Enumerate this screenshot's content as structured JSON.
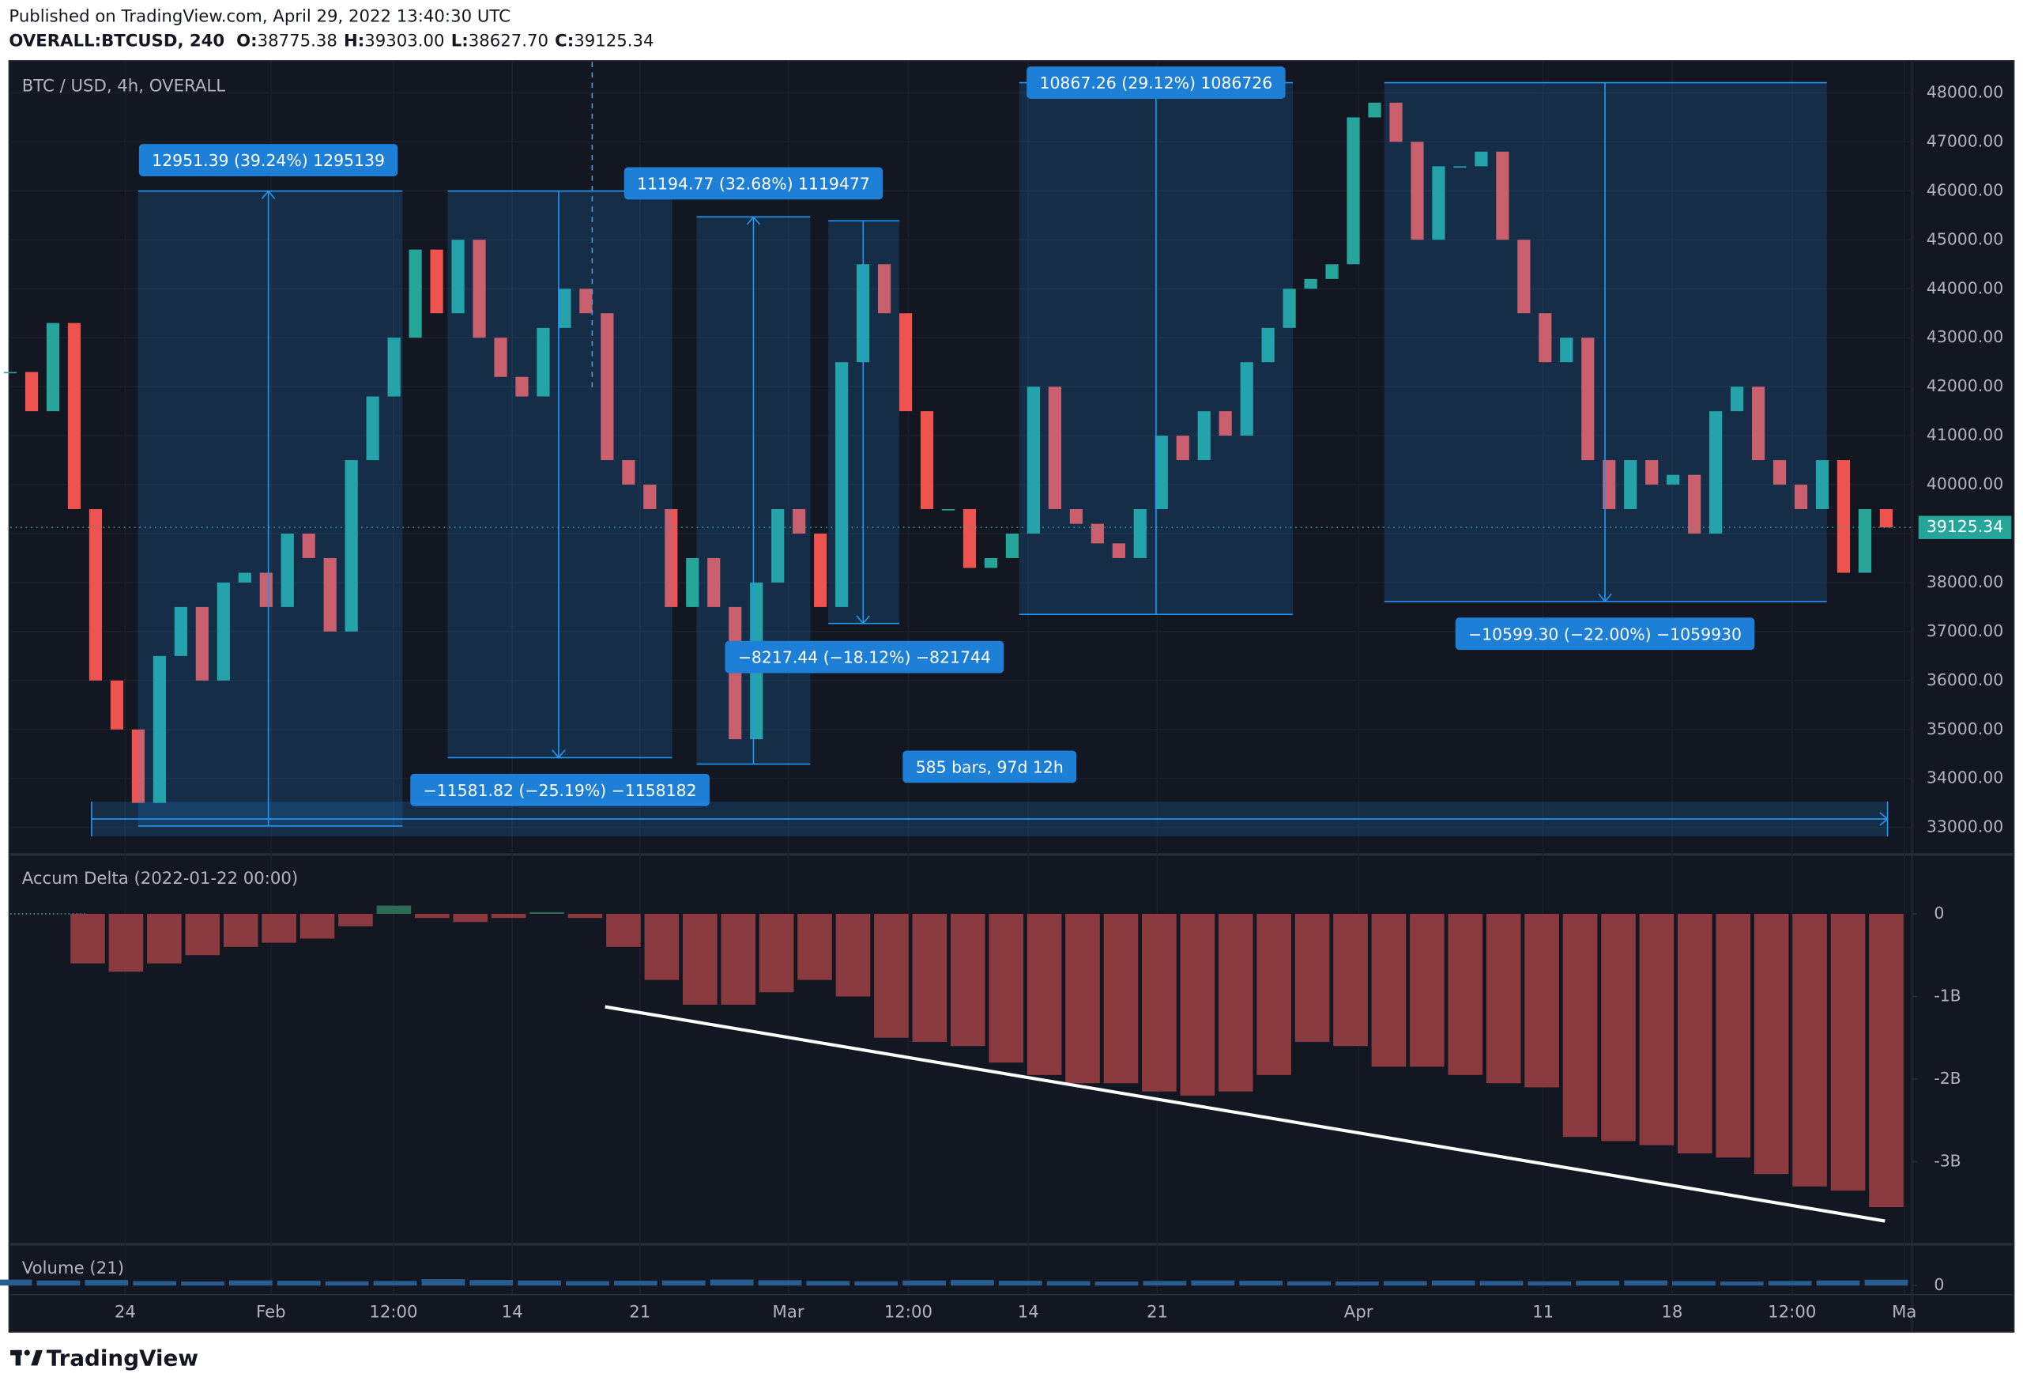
{
  "header": {
    "published": "Published on TradingView.com, April 29, 2022 13:40:30 UTC",
    "symbol": "OVERALL:BTCUSD, 240",
    "ohlc": [
      {
        "label": "O:",
        "value": "38775.38"
      },
      {
        "label": "H:",
        "value": "39303.00"
      },
      {
        "label": "L:",
        "value": "38627.70"
      },
      {
        "label": "C:",
        "value": "39125.34"
      }
    ]
  },
  "footer": {
    "brand": "TradingView"
  },
  "x_axis": {
    "labels": [
      "24",
      "Feb",
      "12:00",
      "14",
      "21",
      "Mar",
      "12:00",
      "14",
      "21",
      "Apr",
      "11",
      "18",
      "12:00",
      "Ma"
    ]
  },
  "chart_data": [
    {
      "type": "candlestick",
      "title": "BTC / USD, 4h, OVERALL",
      "up_color": "#26a69a",
      "down_color": "#ef5350",
      "values": [
        42300,
        41500,
        43300,
        39500,
        36000,
        35000,
        33500,
        36500,
        37500,
        36000,
        38000,
        38200,
        37500,
        39000,
        38500,
        37000,
        40500,
        41800,
        43000,
        44800,
        43500,
        45000,
        43000,
        42200,
        41800,
        43200,
        44000,
        43500,
        40500,
        40000,
        39500,
        37500,
        38500,
        37500,
        34800,
        38000,
        39500,
        39000,
        37500,
        42500,
        44500,
        43500,
        41500,
        39500,
        39500,
        38300,
        38500,
        39000,
        42000,
        39500,
        39200,
        38800,
        38500,
        39500,
        41000,
        40500,
        41500,
        41000,
        42500,
        43200,
        44000,
        44200,
        44500,
        47500,
        47800,
        47000,
        45000,
        46500,
        46500,
        46800,
        45000,
        43500,
        42500,
        43000,
        40500,
        39500,
        40500,
        40000,
        40200,
        39000,
        41500,
        42000,
        40500,
        40000,
        39500,
        40500,
        38200,
        39500,
        39125.34
      ],
      "last_price": 39125.34,
      "ylim": [
        32500,
        48630
      ],
      "yticks": [
        {
          "value": 48000,
          "label": "48000.00"
        },
        {
          "value": 47000,
          "label": "47000.00"
        },
        {
          "value": 46000,
          "label": "46000.00"
        },
        {
          "value": 45000,
          "label": "45000.00"
        },
        {
          "value": 44000,
          "label": "44000.00"
        },
        {
          "value": 43000,
          "label": "43000.00"
        },
        {
          "value": 42000,
          "label": "42000.00"
        },
        {
          "value": 41000,
          "label": "41000.00"
        },
        {
          "value": 40000,
          "label": "40000.00"
        },
        {
          "value": 39000,
          "label": "39000.00"
        },
        {
          "value": 38000,
          "label": "38000.00"
        },
        {
          "value": 37000,
          "label": "37000.00"
        },
        {
          "value": 36000,
          "label": "36000.00"
        },
        {
          "value": 35000,
          "label": "35000.00"
        },
        {
          "value": 34000,
          "label": "34000.00"
        },
        {
          "value": 33000,
          "label": "33000.00"
        }
      ],
      "grid": true,
      "annotations": [
        "12951.39 (39.24%) 1295139",
        "−11581.82 (−25.19%) −1158182",
        "11194.77 (32.68%) 1119477",
        "−8217.44 (−18.12%) −821744",
        "10867.26 (29.12%) 1086726",
        "−10599.30 (−22.00%) −1059930",
        "585 bars, 97d 12h"
      ]
    },
    {
      "type": "bar",
      "title": "Accum Delta (2022-01-22 00:00)",
      "color": "#8b3a3f",
      "positive_color": "#2e6b55",
      "values": [
        -600000000,
        -700000000,
        -600000000,
        -500000000,
        -400000000,
        -350000000,
        -300000000,
        -150000000,
        100000000,
        -50000000,
        -100000000,
        -50000000,
        20000000,
        -50000000,
        -400000000,
        -800000000,
        -1100000000,
        -1100000000,
        -950000000,
        -800000000,
        -1000000000,
        -1500000000,
        -1550000000,
        -1600000000,
        -1800000000,
        -1950000000,
        -2050000000,
        -2050000000,
        -2150000000,
        -2200000000,
        -2150000000,
        -1950000000,
        -1550000000,
        -1600000000,
        -1850000000,
        -1850000000,
        -1950000000,
        -2050000000,
        -2100000000,
        -2700000000,
        -2750000000,
        -2800000000,
        -2900000000,
        -2950000000,
        -3150000000,
        -3300000000,
        -3350000000,
        -3550000000
      ],
      "ylim": [
        -3984000000,
        703000000
      ],
      "yticks": [
        {
          "value": 0,
          "label": "0"
        },
        {
          "value": -1000000000,
          "label": "-1B"
        },
        {
          "value": -2000000000,
          "label": "-2B"
        },
        {
          "value": -3000000000,
          "label": "-3B"
        }
      ]
    },
    {
      "type": "bar",
      "title": "Volume (21)",
      "color": "#2a5d8f",
      "values": [
        300,
        250,
        280,
        220,
        200,
        260,
        240,
        210,
        230,
        320,
        280,
        250,
        220,
        240,
        260,
        300,
        270,
        230,
        210,
        250,
        280,
        240,
        220,
        200,
        230,
        260,
        240,
        210,
        200,
        220,
        250,
        230,
        210,
        240,
        260,
        220,
        200,
        230,
        250,
        290
      ],
      "ylim": [
        0,
        2000
      ],
      "yticks": [
        0
      ]
    }
  ]
}
